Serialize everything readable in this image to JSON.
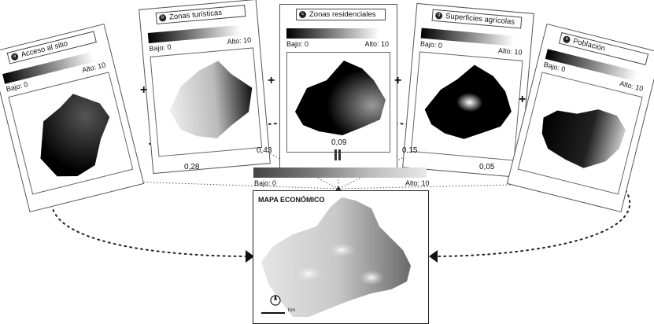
{
  "inputs": [
    {
      "badge": "a",
      "title": "Acceso al sitio",
      "low": "Bajo: 0",
      "high": "Alto: 10",
      "weight": "0,28"
    },
    {
      "badge": "b",
      "title": "Zonas turísticas",
      "low": "Bajo: 0",
      "high": "Alto: 10",
      "weight": "0,43"
    },
    {
      "badge": "c",
      "title": "Zonas residenciales",
      "low": "Bajo: 0",
      "high": "Alto: 10",
      "weight": "0,09"
    },
    {
      "badge": "d",
      "title": "Superficies agrícolas",
      "low": "Bajo: 0",
      "high": "Alto: 10",
      "weight": "0,15"
    },
    {
      "badge": "e",
      "title": "Población",
      "low": "Bajo: 0",
      "high": "Alto: 10",
      "weight": "0,05"
    }
  ],
  "operators": {
    "plus": "+"
  },
  "result": {
    "title": "MAPA ECONÓMICO",
    "low": "Bajo: 0",
    "high": "Alto: 10",
    "scale_unit": "Km"
  }
}
